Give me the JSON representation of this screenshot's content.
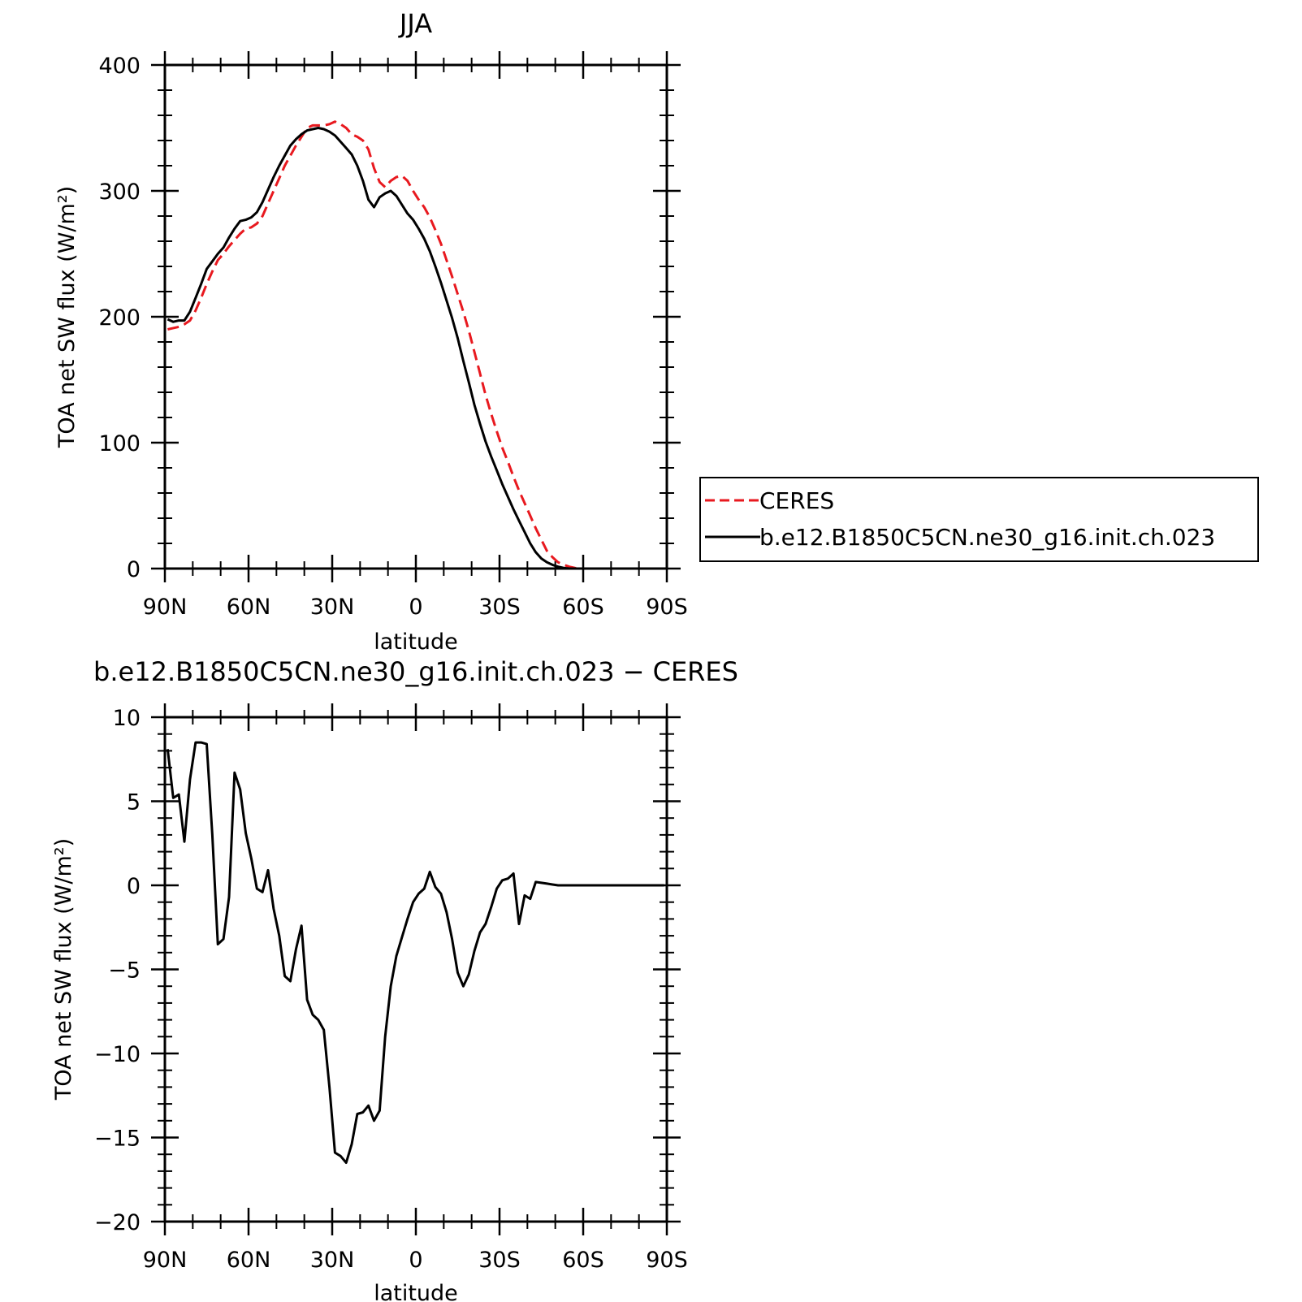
{
  "chart_data": [
    {
      "type": "line",
      "title": "JJA",
      "xlabel": "latitude",
      "ylabel": "TOA net SW flux (W/m²)",
      "xlim": [
        90,
        -90
      ],
      "ylim": [
        0,
        400
      ],
      "x_ticks": [
        90,
        60,
        30,
        0,
        -30,
        -60,
        -90
      ],
      "x_tick_labels": [
        "90N",
        "60N",
        "30N",
        "0",
        "30S",
        "60S",
        "90S"
      ],
      "y_ticks": [
        0,
        100,
        200,
        300,
        400
      ],
      "y_tick_labels": [
        "0",
        "100",
        "200",
        "300",
        "400"
      ],
      "legend": "right",
      "series": [
        {
          "name": "CERES",
          "color": "#e8191f",
          "dash": "dashed",
          "x": [
            89,
            87,
            85,
            83,
            81,
            79,
            77,
            75,
            73,
            71,
            69,
            67,
            65,
            63,
            61,
            59,
            57,
            55,
            53,
            51,
            49,
            47,
            45,
            43,
            41,
            39,
            37,
            35,
            33,
            31,
            29,
            27,
            25,
            23,
            21,
            19,
            17,
            15,
            13,
            11,
            9,
            7,
            5,
            3,
            1,
            -1,
            -3,
            -5,
            -7,
            -9,
            -11,
            -13,
            -15,
            -17,
            -19,
            -21,
            -23,
            -25,
            -27,
            -29,
            -31,
            -33,
            -35,
            -37,
            -39,
            -41,
            -43,
            -45,
            -47,
            -49,
            -51,
            -53,
            -55,
            -57,
            -59,
            -61,
            -63,
            -65,
            -67,
            -69,
            -71,
            -73,
            -75,
            -77,
            -79,
            -81,
            -83,
            -85,
            -87,
            -89
          ],
          "y": [
            190,
            191,
            192,
            194,
            197,
            205,
            215,
            226,
            236,
            245,
            250,
            256,
            261,
            266,
            270,
            271,
            274,
            280,
            290,
            300,
            310,
            320,
            328,
            336,
            343,
            350,
            352,
            352,
            352,
            353,
            355,
            353,
            350,
            345,
            343,
            340,
            333,
            318,
            307,
            303,
            308,
            311,
            312,
            308,
            300,
            293,
            287,
            279,
            269,
            258,
            245,
            232,
            218,
            204,
            189,
            172,
            155,
            138,
            123,
            109,
            96,
            85,
            73,
            62,
            52,
            42,
            32,
            23,
            14,
            9,
            5,
            3,
            1.5,
            0.5,
            0,
            0,
            0,
            0,
            0,
            0,
            0,
            0,
            0,
            0,
            0,
            0,
            0,
            0,
            0,
            0
          ]
        },
        {
          "name": "b.e12.B1850C5CN.ne30_g16.init.ch.023",
          "color": "#000000",
          "dash": "solid",
          "x": [
            89,
            87,
            85,
            83,
            81,
            79,
            77,
            75,
            73,
            71,
            69,
            67,
            65,
            63,
            61,
            59,
            57,
            55,
            53,
            51,
            49,
            47,
            45,
            43,
            41,
            39,
            37,
            35,
            33,
            31,
            29,
            27,
            25,
            23,
            21,
            19,
            17,
            15,
            13,
            11,
            9,
            7,
            5,
            3,
            1,
            -1,
            -3,
            -5,
            -7,
            -9,
            -11,
            -13,
            -15,
            -17,
            -19,
            -21,
            -23,
            -25,
            -27,
            -29,
            -31,
            -33,
            -35,
            -37,
            -39,
            -41,
            -43,
            -45,
            -47,
            -49,
            -51,
            -53,
            -55,
            -57,
            -59,
            -61,
            -63,
            -65,
            -67,
            -69,
            -71,
            -73,
            -75,
            -77,
            -79,
            -81,
            -83,
            -85,
            -87,
            -89
          ],
          "y": [
            198,
            196,
            197,
            197,
            204,
            215,
            226,
            238,
            244,
            250,
            255,
            263,
            270,
            276,
            277,
            279,
            283,
            291,
            301,
            311,
            320,
            328,
            336,
            341,
            345,
            348,
            349,
            350,
            349,
            347,
            344,
            339,
            334,
            329,
            320,
            308,
            293,
            287,
            295,
            298,
            300,
            296,
            289,
            282,
            277,
            270,
            262,
            252,
            240,
            227,
            213,
            199,
            183,
            165,
            148,
            130,
            115,
            101,
            89,
            78,
            67,
            57,
            47,
            38,
            29,
            20,
            13,
            8,
            5,
            3,
            1.5,
            0.5,
            0,
            0,
            0,
            0,
            0,
            0,
            0,
            0,
            0,
            0,
            0,
            0,
            0,
            0,
            0,
            0,
            0,
            0
          ]
        }
      ]
    },
    {
      "type": "line",
      "title": "b.e12.B1850C5CN.ne30_g16.init.ch.023 − CERES",
      "xlabel": "latitude",
      "ylabel": "TOA net SW flux (W/m²)",
      "xlim": [
        90,
        -90
      ],
      "ylim": [
        -20,
        10
      ],
      "x_ticks": [
        90,
        60,
        30,
        0,
        -30,
        -60,
        -90
      ],
      "x_tick_labels": [
        "90N",
        "60N",
        "30N",
        "0",
        "30S",
        "60S",
        "90S"
      ],
      "y_ticks": [
        10,
        5,
        0,
        -5,
        -10,
        -15,
        -20
      ],
      "y_tick_labels": [
        "10",
        "5",
        "0",
        "−5",
        "−10",
        "−15",
        "−20"
      ],
      "series": [
        {
          "color": "#000000",
          "dash": "solid",
          "x": [
            89,
            87,
            85,
            83,
            81,
            79,
            77,
            75,
            73,
            71,
            69,
            67,
            65,
            63,
            61,
            59,
            57,
            55,
            53,
            51,
            49,
            47,
            45,
            43,
            41,
            39,
            37,
            35,
            33,
            31,
            29,
            27,
            25,
            23,
            21,
            19,
            17,
            15,
            13,
            11,
            9,
            7,
            5,
            3,
            1,
            -1,
            -3,
            -5,
            -7,
            -9,
            -11,
            -13,
            -15,
            -17,
            -19,
            -21,
            -23,
            -25,
            -27,
            -29,
            -31,
            -33,
            -35,
            -37,
            -39,
            -41,
            -43,
            -45,
            -47,
            -49,
            -51,
            -53,
            -55,
            -57,
            -59,
            -61,
            -63,
            -65,
            -67,
            -69,
            -71,
            -73,
            -75,
            -77,
            -79,
            -81,
            -83,
            -85,
            -87,
            -89
          ],
          "y": [
            8.1,
            5.2,
            5.4,
            2.6,
            6.3,
            8.5,
            8.5,
            8.4,
            3.0,
            -3.5,
            -3.2,
            -0.7,
            6.7,
            5.7,
            3.1,
            1.6,
            -0.2,
            -0.4,
            0.9,
            -1.4,
            -3.0,
            -5.4,
            -5.7,
            -3.8,
            -2.4,
            -6.8,
            -7.7,
            -8.0,
            -8.6,
            -12.0,
            -15.9,
            -16.1,
            -16.5,
            -15.4,
            -13.6,
            -13.5,
            -13.1,
            -14.0,
            -13.4,
            -9.0,
            -6.0,
            -4.2,
            -3.1,
            -2.0,
            -1.0,
            -0.5,
            -0.2,
            0.8,
            -0.1,
            -0.5,
            -1.6,
            -3.2,
            -5.2,
            -6.0,
            -5.3,
            -3.9,
            -2.8,
            -2.3,
            -1.3,
            -0.2,
            0.3,
            0.4,
            0.7,
            -2.3,
            -0.6,
            -0.8,
            0.2,
            0.15,
            0.1,
            0.05,
            0,
            0,
            0,
            0,
            0,
            0,
            0,
            0,
            0,
            0,
            0,
            0,
            0,
            0,
            0,
            0,
            0,
            0,
            0,
            0
          ]
        }
      ]
    }
  ]
}
